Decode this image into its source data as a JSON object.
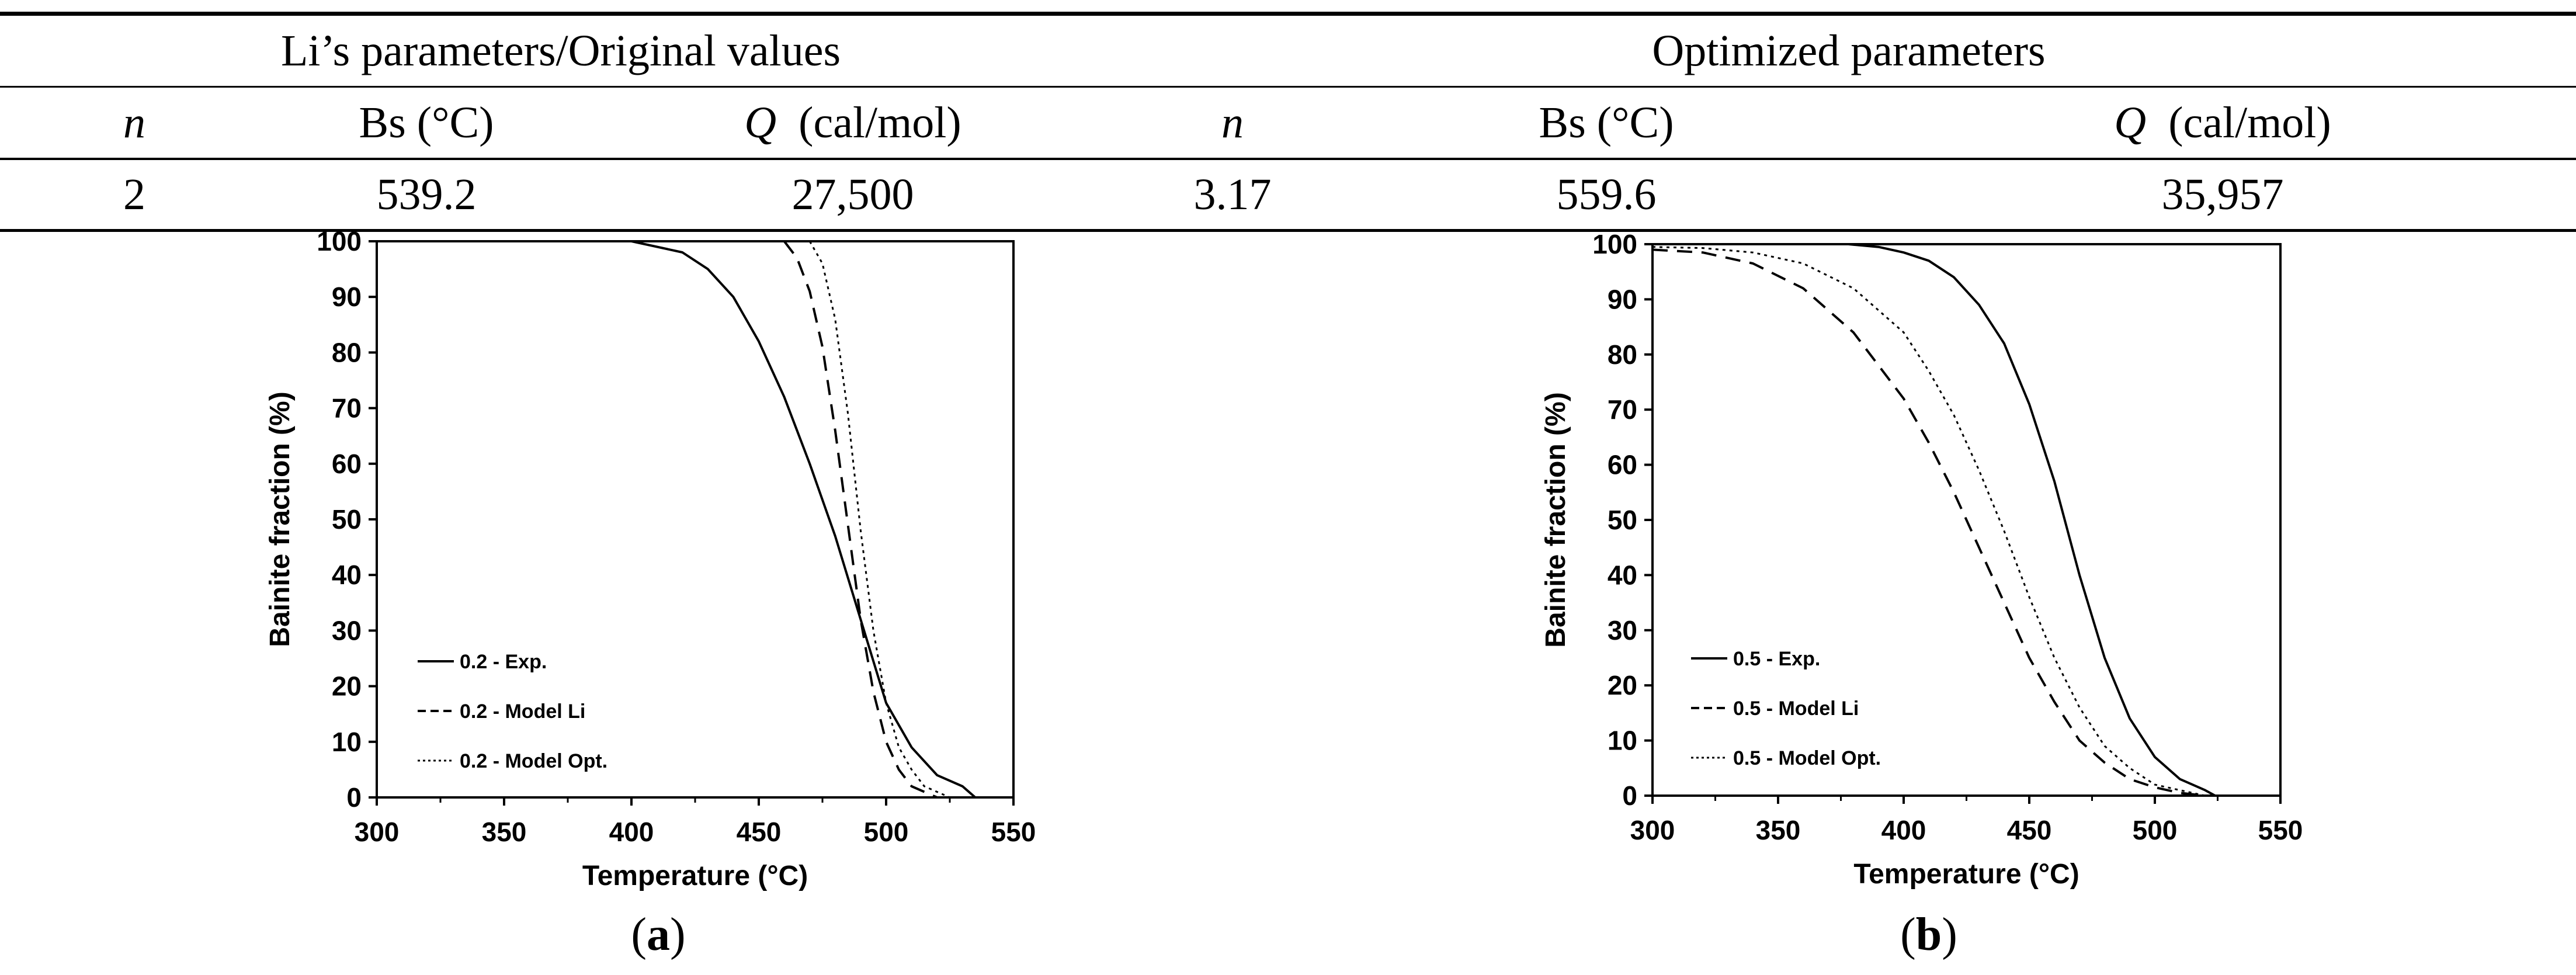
{
  "table": {
    "group_left": "Li’s parameters/Original values",
    "group_right": "Optimized parameters",
    "headers": [
      "n",
      "Bs (°C)",
      "Q",
      "(cal/mol)",
      "n",
      "Bs (°C)",
      "Q",
      "(cal/mol)"
    ],
    "row": [
      "2",
      "539.2",
      "27,500",
      "3.17",
      "559.6",
      "35,957"
    ]
  },
  "chart_data": [
    {
      "type": "line",
      "caption_open": "(",
      "caption_letter": "a",
      "caption_close": ")",
      "xlabel": "Temperature (°C)",
      "ylabel": "Bainite fraction (%)",
      "xlim": [
        300,
        550
      ],
      "ylim": [
        0,
        100
      ],
      "xticks": [
        "300",
        "350",
        "400",
        "450",
        "500",
        "550"
      ],
      "yticks": [
        "0",
        "10",
        "20",
        "30",
        "40",
        "50",
        "60",
        "70",
        "80",
        "90",
        "100"
      ],
      "series": [
        {
          "name": "0.2 - Exp.",
          "style": "solid",
          "x": [
            400,
            420,
            430,
            440,
            450,
            460,
            470,
            480,
            490,
            500,
            510,
            520,
            530,
            535
          ],
          "y": [
            100,
            98,
            95,
            90,
            82,
            72,
            60,
            47,
            32,
            17,
            9,
            4,
            2,
            0
          ]
        },
        {
          "name": "0.2 - Model Li",
          "style": "dashed",
          "x": [
            460,
            465,
            470,
            475,
            480,
            485,
            490,
            495,
            500,
            505,
            510,
            515,
            520,
            525
          ],
          "y": [
            100,
            97,
            91,
            81,
            66,
            49,
            32,
            19,
            10,
            5,
            2,
            1,
            0,
            0
          ]
        },
        {
          "name": "0.2 - Model Opt.",
          "style": "dotted",
          "x": [
            470,
            475,
            480,
            485,
            490,
            495,
            500,
            505,
            510,
            515,
            520,
            525,
            530
          ],
          "y": [
            100,
            96,
            86,
            69,
            48,
            30,
            17,
            9,
            5,
            2,
            1,
            0,
            0
          ]
        }
      ]
    },
    {
      "type": "line",
      "caption_open": "(",
      "caption_letter": "b",
      "caption_close": ")",
      "xlabel": "Temperature (°C)",
      "ylabel": "Bainite fraction (%)",
      "xlim": [
        300,
        550
      ],
      "ylim": [
        0,
        100
      ],
      "xticks": [
        "300",
        "350",
        "400",
        "450",
        "500",
        "550"
      ],
      "yticks": [
        "0",
        "10",
        "20",
        "30",
        "40",
        "50",
        "60",
        "70",
        "80",
        "90",
        "100"
      ],
      "series": [
        {
          "name": "0.5 - Exp.",
          "style": "solid",
          "x": [
            378,
            390,
            400,
            410,
            420,
            430,
            440,
            450,
            460,
            470,
            480,
            490,
            500,
            510,
            520,
            524
          ],
          "y": [
            100,
            99.5,
            98.5,
            97,
            94,
            89,
            82,
            71,
            57,
            40,
            25,
            14,
            7,
            3,
            1,
            0
          ]
        },
        {
          "name": "0.5 - Model Li",
          "style": "dashed",
          "x": [
            300,
            320,
            340,
            360,
            380,
            400,
            410,
            420,
            430,
            440,
            450,
            460,
            470,
            480,
            490,
            500,
            510,
            520
          ],
          "y": [
            99,
            98.5,
            96.5,
            92,
            84,
            72,
            64,
            55,
            45,
            35,
            25,
            17,
            10,
            6,
            3,
            1.5,
            0.5,
            0
          ]
        },
        {
          "name": "0.5 - Model Opt.",
          "style": "dotted",
          "x": [
            300,
            320,
            340,
            360,
            380,
            400,
            410,
            420,
            430,
            440,
            450,
            460,
            470,
            480,
            490,
            500,
            510,
            520
          ],
          "y": [
            99.5,
            99.3,
            98.5,
            96.5,
            92,
            84,
            77,
            69,
            59,
            48,
            36,
            25,
            16,
            9,
            5,
            2,
            1,
            0
          ]
        }
      ]
    }
  ]
}
